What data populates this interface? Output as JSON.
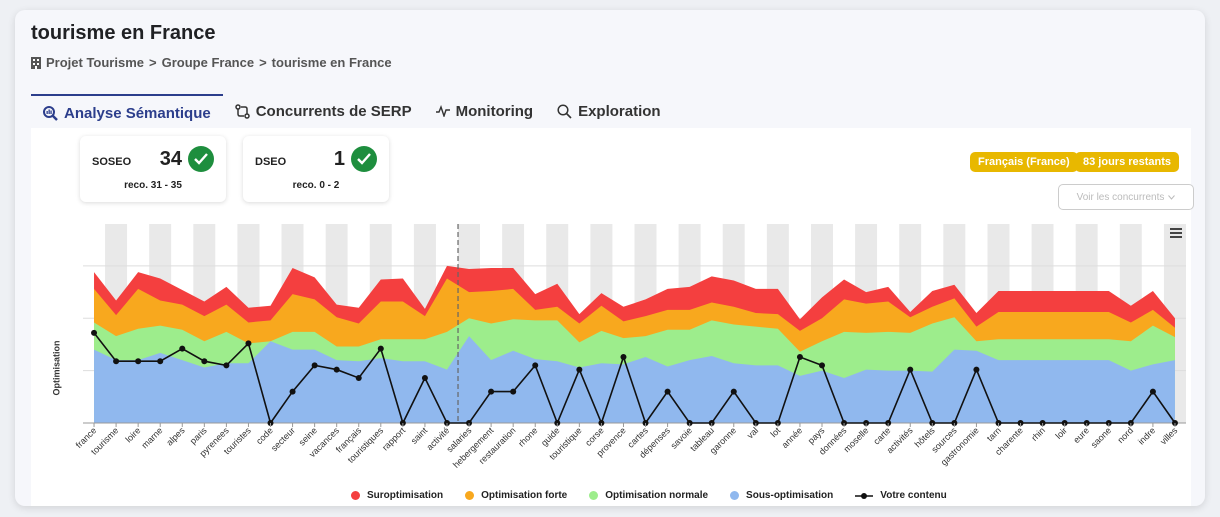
{
  "header": {
    "title": "tourisme en France",
    "breadcrumb": [
      "Projet Tourisme",
      "Groupe France",
      "tourisme en France"
    ]
  },
  "tabs": [
    {
      "label": "Analyse Sémantique",
      "icon": "magnifier-chart-icon",
      "active": true
    },
    {
      "label": "Concurrents de SERP",
      "icon": "compare-arrows-icon",
      "active": false
    },
    {
      "label": "Monitoring",
      "icon": "pulse-icon",
      "active": false
    },
    {
      "label": "Exploration",
      "icon": "search-icon",
      "active": false
    }
  ],
  "scores": [
    {
      "label": "SOSEO",
      "value": "34",
      "reco": "reco. 31 - 35"
    },
    {
      "label": "DSEO",
      "value": "1",
      "reco": "reco. 0 - 2"
    }
  ],
  "badges": {
    "language": "Français (France)",
    "days": "83 jours restants"
  },
  "buttons": {
    "competitors": "Voir les concurrents"
  },
  "colors": {
    "accent": "#2c3e8c",
    "badge": "#e8b800",
    "check": "#1e8e3e",
    "red": "#f43f3f",
    "orange": "#f8a81e",
    "green": "#9ded8c",
    "blue": "#90b8ee"
  },
  "chart_data": {
    "type": "area",
    "ylabel": "Optimisation",
    "categories": [
      "france",
      "tourisme",
      "loire",
      "marne",
      "alpes",
      "paris",
      "pyrenees",
      "touristes",
      "code",
      "secteur",
      "seine",
      "vacances",
      "français",
      "touristiques",
      "rapport",
      "saint",
      "activité",
      "salaries",
      "hebergement",
      "restauration",
      "rhone",
      "guide",
      "touristique",
      "corse",
      "provence",
      "cartes",
      "dépenses",
      "savoie",
      "tableau",
      "garonne",
      "val",
      "lot",
      "année",
      "pays",
      "données",
      "moselle",
      "carte",
      "activités",
      "hôtels",
      "sources",
      "gastronomie",
      "tarn",
      "charente",
      "rhin",
      "loir",
      "eure",
      "saone",
      "nord",
      "indre",
      "villes"
    ],
    "series": [
      {
        "name": "Sous-optimisation",
        "values": [
          70,
          60,
          60,
          67,
          60,
          53,
          57,
          57,
          78,
          70,
          70,
          60,
          59,
          62,
          59,
          59,
          51,
          83,
          60,
          69,
          61,
          59,
          53,
          57,
          56,
          63,
          54,
          60,
          64,
          57,
          55,
          55,
          45,
          50,
          43,
          51,
          50,
          50,
          49,
          70,
          69,
          60,
          60,
          60,
          60,
          60,
          60,
          50,
          56,
          60
        ]
      },
      {
        "name": "Optimisation normale",
        "values": [
          96,
          83,
          90,
          93,
          89,
          78,
          87,
          76,
          78,
          87,
          87,
          73,
          73,
          80,
          80,
          80,
          87,
          100,
          95,
          99,
          98,
          98,
          77,
          88,
          81,
          83,
          89,
          89,
          98,
          94,
          92,
          90,
          68,
          78,
          87,
          86,
          87,
          86,
          95,
          101,
          78,
          80,
          80,
          80,
          80,
          80,
          80,
          78,
          93,
          82
        ]
      },
      {
        "name": "Optimisation forte",
        "values": [
          128,
          103,
          128,
          117,
          113,
          102,
          113,
          96,
          98,
          123,
          118,
          101,
          95,
          116,
          116,
          102,
          138,
          125,
          126,
          128,
          108,
          111,
          95,
          112,
          97,
          102,
          108,
          108,
          115,
          111,
          105,
          104,
          88,
          100,
          118,
          114,
          116,
          101,
          111,
          119,
          92,
          106,
          106,
          106,
          106,
          106,
          106,
          96,
          108,
          91
        ]
      },
      {
        "name": "Suroptimisation",
        "values": [
          144,
          117,
          144,
          138,
          127,
          116,
          130,
          110,
          112,
          148,
          139,
          113,
          110,
          137,
          138,
          109,
          150,
          147,
          148,
          148,
          123,
          133,
          104,
          124,
          111,
          118,
          128,
          130,
          140,
          136,
          128,
          128,
          99,
          120,
          137,
          125,
          130,
          106,
          126,
          132,
          105,
          126,
          126,
          126,
          126,
          126,
          126,
          112,
          126,
          100
        ]
      },
      {
        "name": "Votre contenu",
        "values": [
          86,
          59,
          59,
          59,
          71,
          59,
          55,
          76,
          0,
          30,
          55,
          51,
          43,
          71,
          0,
          43,
          0,
          0,
          30,
          30,
          55,
          0,
          51,
          0,
          63,
          0,
          30,
          0,
          0,
          30,
          0,
          0,
          63,
          55,
          0,
          0,
          0,
          51,
          0,
          0,
          51,
          0,
          0,
          0,
          0,
          0,
          0,
          0,
          30,
          0
        ]
      }
    ],
    "ylim": [
      0,
      190
    ],
    "current_marker": "activité",
    "legend_position": "bottom"
  }
}
